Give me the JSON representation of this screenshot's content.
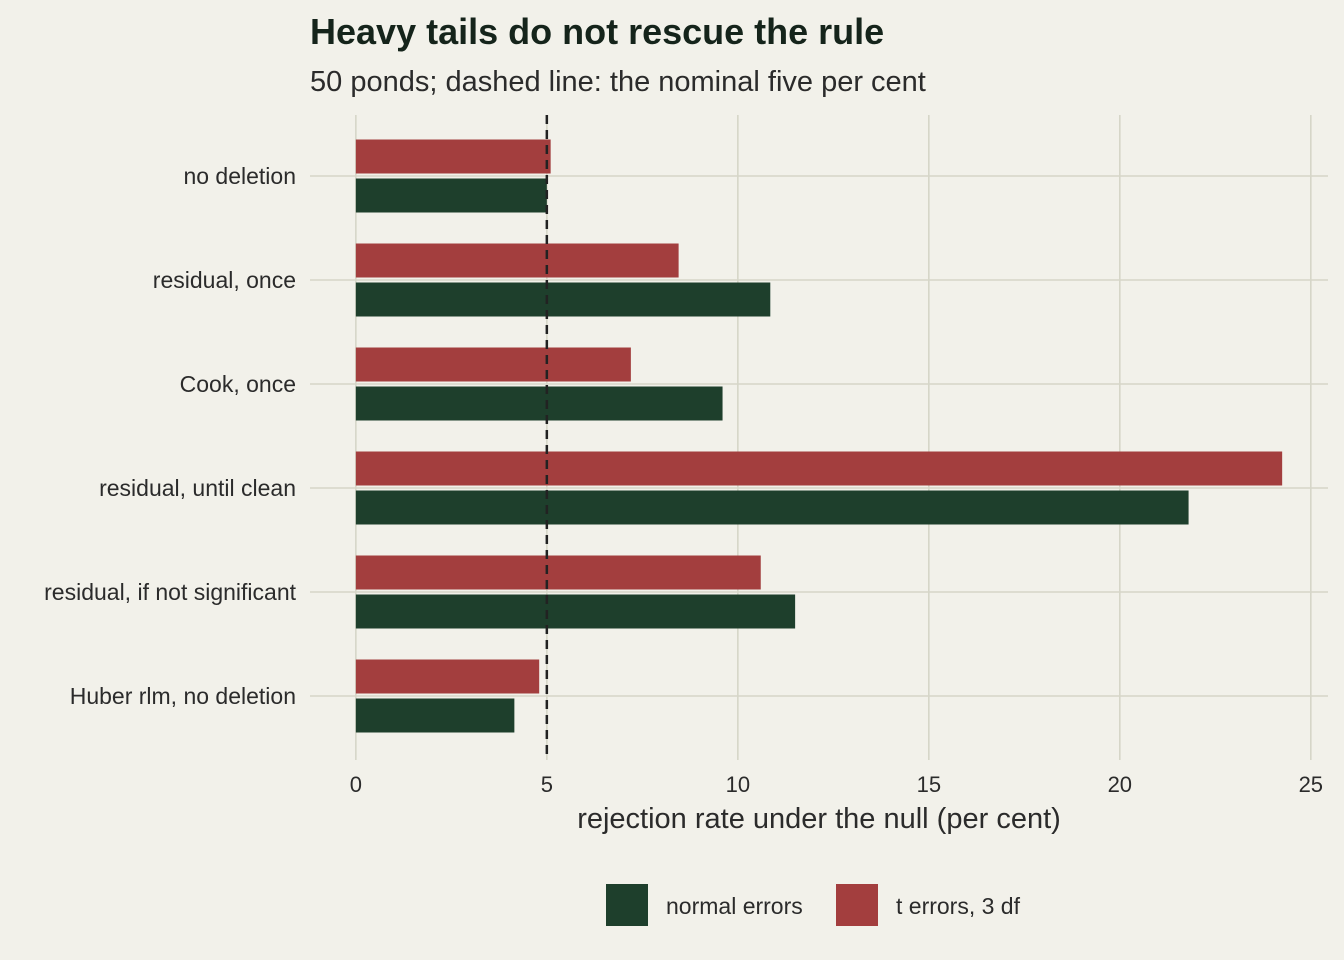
{
  "chart_data": {
    "type": "bar",
    "orientation": "horizontal",
    "title": "Heavy tails do not rescue the rule",
    "subtitle": "50 ponds; dashed line: the nominal five per cent",
    "xlabel": "rejection rate under the null (per cent)",
    "ylabel": "",
    "categories": [
      "no deletion",
      "residual, once",
      "Cook, once",
      "residual, until clean",
      "residual, if not significant",
      "Huber rlm, no deletion"
    ],
    "series": [
      {
        "name": "normal errors",
        "color": "#1e3f2c",
        "values": [
          5.0,
          10.85,
          9.6,
          21.8,
          11.5,
          4.15
        ]
      },
      {
        "name": "t errors, 3 df",
        "color": "#a33e3e",
        "values": [
          5.1,
          8.45,
          7.2,
          24.25,
          10.6,
          4.8
        ]
      }
    ],
    "xlim": [
      -1.2,
      25.45
    ],
    "xticks": [
      "0",
      "5",
      "10",
      "15",
      "20",
      "25"
    ],
    "reference_line": 5,
    "grid": true,
    "legend_position": "bottom"
  }
}
